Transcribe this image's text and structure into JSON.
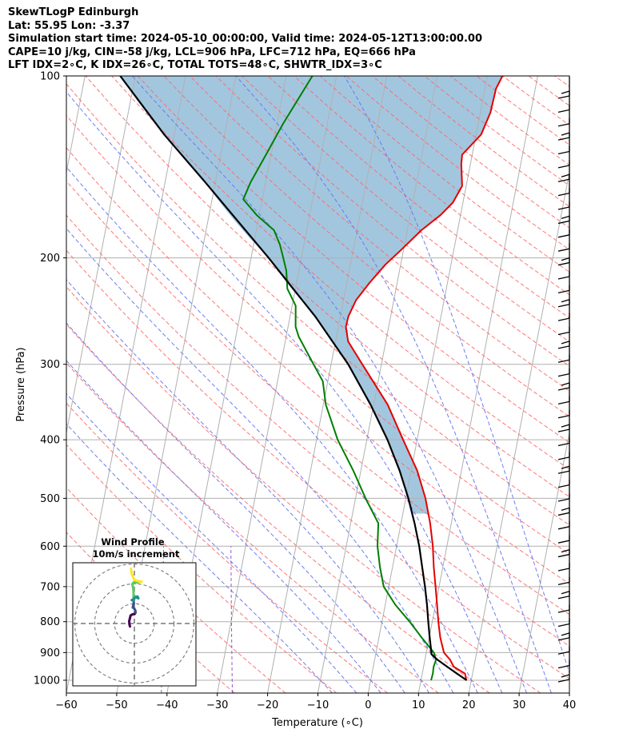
{
  "header": {
    "title": "SkewTLogP Edinburgh",
    "location": "Lat: 55.95   Lon: -3.37",
    "times": "Simulation start time: 2024-05-10_00:00:00, Valid time: 2024-05-12T13:00:00.00",
    "indices1": "CAPE=10 j/kg, CIN=-58 j/kg, LCL=906 hPa, LFC=712 hPa, EQ=666 hPa",
    "indices2": "LFT IDX=2∘C, K IDX=26∘C, TOTAL TOTS=48∘C, SHWTR_IDX=3∘C"
  },
  "chart_data": [
    {
      "type": "line",
      "subtype": "skew-t log-p",
      "xlabel": "Temperature (∘C)",
      "ylabel": "Pressure (hPa)",
      "xlim": [
        -60,
        40
      ],
      "ylim": [
        1050,
        100
      ],
      "yscale": "log",
      "x_ticks": [
        "−60",
        "−50",
        "−40",
        "−30",
        "−20",
        "−10",
        "0",
        "10",
        "20",
        "30",
        "40"
      ],
      "y_ticks": [
        "1000",
        "900",
        "800",
        "700",
        "600",
        "500",
        "400",
        "300",
        "200",
        "100"
      ],
      "grid": true,
      "colors": {
        "temperature": "#e50000",
        "dewpoint": "#007f00",
        "parcel": "#000000",
        "cape_fill": "#a3c6df",
        "dry_adiabat": "#ff6666",
        "moist_adiabat": "#6677ee",
        "mixing_ratio": "#9955cc",
        "isotherm": "#b0b0b0"
      },
      "series": [
        {
          "role": "temperature",
          "points": [
            [
              1000,
              19
            ],
            [
              975,
              18.5
            ],
            [
              950,
              16
            ],
            [
              925,
              15
            ],
            [
              900,
              13.5
            ],
            [
              850,
              12.2
            ],
            [
              800,
              11.2
            ],
            [
              750,
              10.3
            ],
            [
              700,
              9.3
            ],
            [
              650,
              8.2
            ],
            [
              600,
              7.2
            ],
            [
              550,
              5.8
            ],
            [
              500,
              3.9
            ],
            [
              450,
              1.2
            ],
            [
              400,
              -2.8
            ],
            [
              350,
              -7.2
            ],
            [
              300,
              -13.8
            ],
            [
              275,
              -17.5
            ],
            [
              260,
              -18.5
            ],
            [
              250,
              -18.4
            ],
            [
              235,
              -17.5
            ],
            [
              220,
              -15.5
            ],
            [
              205,
              -13
            ],
            [
              195,
              -10.7
            ],
            [
              180,
              -7.2
            ],
            [
              170,
              -4
            ],
            [
              162,
              -2
            ],
            [
              152,
              -0.8
            ],
            [
              140,
              -1.8
            ],
            [
              135,
              -2
            ],
            [
              125,
              1
            ],
            [
              115,
              2
            ],
            [
              105,
              2.2
            ],
            [
              100,
              3
            ]
          ]
        },
        {
          "role": "dewpoint",
          "points": [
            [
              1000,
              12
            ],
            [
              975,
              12.1
            ],
            [
              950,
              12
            ],
            [
              925,
              12.2
            ],
            [
              900,
              11.5
            ],
            [
              850,
              8.5
            ],
            [
              800,
              5.5
            ],
            [
              750,
              2
            ],
            [
              700,
              -1
            ],
            [
              650,
              -2.5
            ],
            [
              600,
              -3.8
            ],
            [
              550,
              -4.5
            ],
            [
              500,
              -8
            ],
            [
              450,
              -11.5
            ],
            [
              400,
              -15.8
            ],
            [
              350,
              -19.5
            ],
            [
              320,
              -21
            ],
            [
              300,
              -23.5
            ],
            [
              270,
              -27.5
            ],
            [
              260,
              -28.5
            ],
            [
              240,
              -29.3
            ],
            [
              225,
              -31.6
            ],
            [
              210,
              -32.5
            ],
            [
              200,
              -33.6
            ],
            [
              190,
              -34.8
            ],
            [
              180,
              -36.5
            ],
            [
              170,
              -40.5
            ],
            [
              160,
              -43.8
            ],
            [
              150,
              -43
            ],
            [
              135,
              -41
            ],
            [
              120,
              -38.8
            ],
            [
              100,
              -34.8
            ]
          ]
        },
        {
          "role": "parcel",
          "points": [
            [
              1000,
              19.1
            ],
            [
              975,
              16.9
            ],
            [
              950,
              14.7
            ],
            [
              925,
              12.5
            ],
            [
              906,
              11.1
            ],
            [
              900,
              11
            ],
            [
              850,
              10.1
            ],
            [
              800,
              9.2
            ],
            [
              750,
              8.3
            ],
            [
              700,
              7.2
            ],
            [
              650,
              5.9
            ],
            [
              600,
              4.5
            ],
            [
              550,
              2.7
            ],
            [
              500,
              0.5
            ],
            [
              450,
              -2.3
            ],
            [
              400,
              -5.9
            ],
            [
              350,
              -10.6
            ],
            [
              300,
              -16.6
            ],
            [
              250,
              -25
            ],
            [
              200,
              -36.5
            ],
            [
              150,
              -52
            ],
            [
              125,
              -62
            ],
            [
              100,
              -73
            ]
          ]
        }
      ],
      "wind_barb_count": 43
    },
    {
      "type": "line",
      "subtype": "hodograph",
      "title": "Wind Profile",
      "subtitle": "10m/s increment",
      "rings": [
        10,
        20,
        30
      ],
      "colormap": [
        "#440154",
        "#3b528b",
        "#21918c",
        "#5ec962",
        "#fde725"
      ],
      "points": [
        [
          -2.2,
          -1.5
        ],
        [
          -2.5,
          -0.3
        ],
        [
          -2.6,
          1.2
        ],
        [
          -2.2,
          2.8
        ],
        [
          -1.9,
          4
        ],
        [
          -1.2,
          4.5
        ],
        [
          0.1,
          4.8
        ],
        [
          0.6,
          5.5
        ],
        [
          0.5,
          6.5
        ],
        [
          0,
          7.5
        ],
        [
          -0.8,
          8.1
        ],
        [
          -0.6,
          9
        ],
        [
          -0.3,
          10.2
        ],
        [
          -0.3,
          11.4
        ],
        [
          -1.3,
          11.8
        ],
        [
          -0.5,
          12.3
        ],
        [
          0,
          12.4
        ],
        [
          -0.3,
          13.2
        ],
        [
          1.6,
          13.6
        ],
        [
          2,
          12.7
        ],
        [
          -0.4,
          13.9
        ],
        [
          -0.4,
          15.4
        ],
        [
          -0.5,
          17.1
        ],
        [
          -0.8,
          18.8
        ],
        [
          -1,
          19.8
        ],
        [
          -0.5,
          20.6
        ],
        [
          2.6,
          20.8
        ],
        [
          3.7,
          21.1
        ],
        [
          1.1,
          21.6
        ],
        [
          0.1,
          22
        ],
        [
          -0.4,
          22.8
        ],
        [
          -1.4,
          25.3
        ],
        [
          -1.7,
          27.7
        ]
      ]
    }
  ]
}
